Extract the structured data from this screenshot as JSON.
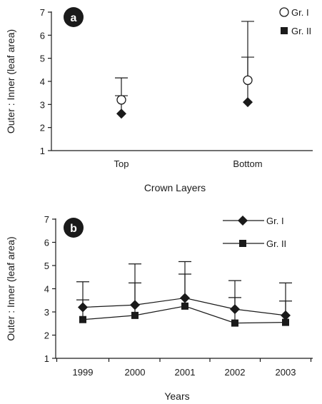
{
  "chart_data": [
    {
      "panel_label": "a",
      "type": "scatter",
      "categories": [
        "Top",
        "Bottom"
      ],
      "xlabel": "Crown Layers",
      "ylabel": "Outer : Inner (leaf area)",
      "ylim": [
        1,
        7
      ],
      "yticks": [
        1,
        2,
        3,
        4,
        5,
        6,
        7
      ],
      "legend_position": "top-right",
      "series": [
        {
          "name": "Gr. I",
          "marker": "circle-open",
          "values": [
            3.2,
            4.05
          ],
          "error_upper": [
            4.15,
            6.6
          ]
        },
        {
          "name": "Gr. II",
          "marker": "diamond",
          "values": [
            2.6,
            3.1
          ],
          "error_upper": [
            3.38,
            5.05
          ]
        }
      ]
    },
    {
      "panel_label": "b",
      "type": "line",
      "categories": [
        "1999",
        "2000",
        "2001",
        "2002",
        "2003"
      ],
      "xlabel": "Years",
      "ylabel": "Outer : Inner (leaf area)",
      "ylim": [
        1,
        7
      ],
      "yticks": [
        1,
        2,
        3,
        4,
        5,
        6,
        7
      ],
      "legend_position": "top-right",
      "series": [
        {
          "name": "Gr. I",
          "marker": "diamond",
          "values": [
            3.2,
            3.3,
            3.6,
            3.12,
            2.85
          ],
          "error_upper": [
            4.3,
            5.07,
            5.17,
            4.35,
            4.25
          ]
        },
        {
          "name": "Gr. II",
          "marker": "square",
          "values": [
            2.67,
            2.85,
            3.25,
            2.52,
            2.55
          ],
          "error_upper": [
            3.52,
            4.25,
            4.63,
            3.62,
            3.47
          ]
        }
      ]
    }
  ]
}
